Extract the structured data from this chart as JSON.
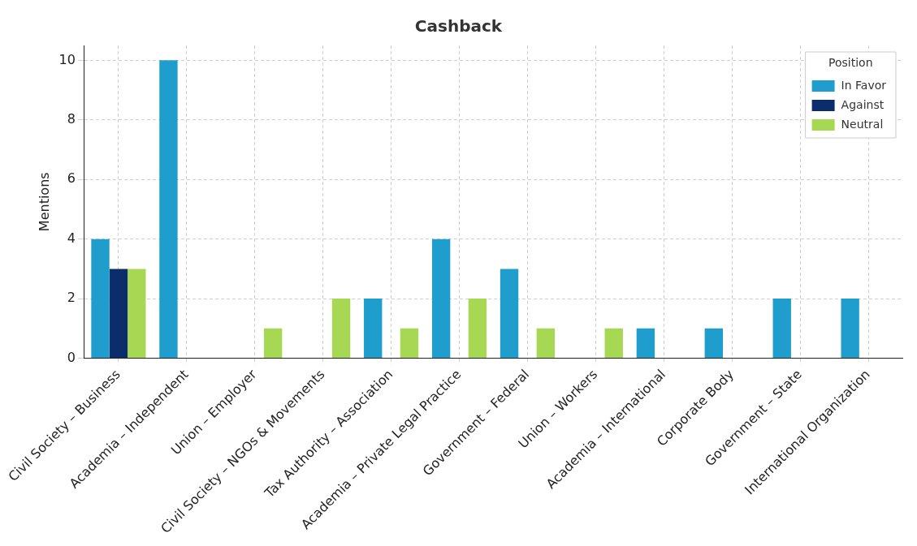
{
  "chart_data": {
    "type": "bar",
    "title": "Cashback",
    "ylabel": "Mentions",
    "legend_title": "Position",
    "legend": "top right",
    "grid": true,
    "line_style": "dashed",
    "categories": [
      "Civil Society – Business",
      "Academia – Independent",
      "Union – Employer",
      "Civil Society – NGOs & Movements",
      "Tax Authority – Association",
      "Academia – Private Legal Practice",
      "Government – Federal",
      "Union – Workers",
      "Academia – International",
      "Corporate Body",
      "Government – State",
      "International Organization"
    ],
    "series": [
      {
        "name": "In Favor",
        "color": "#1f9ece",
        "values": [
          4,
          10,
          0,
          0,
          2,
          4,
          3,
          0,
          1,
          1,
          2,
          2
        ]
      },
      {
        "name": "Against",
        "color": "#0b2d6b",
        "values": [
          3,
          0,
          0,
          0,
          0,
          0,
          0,
          0,
          0,
          0,
          0,
          0
        ]
      },
      {
        "name": "Neutral",
        "color": "#a6d854",
        "values": [
          3,
          0,
          1,
          2,
          1,
          2,
          1,
          1,
          0,
          0,
          0,
          0
        ]
      }
    ],
    "ylim": [
      0,
      10.5
    ],
    "yticks": [
      0,
      2,
      4,
      6,
      8,
      10
    ]
  }
}
